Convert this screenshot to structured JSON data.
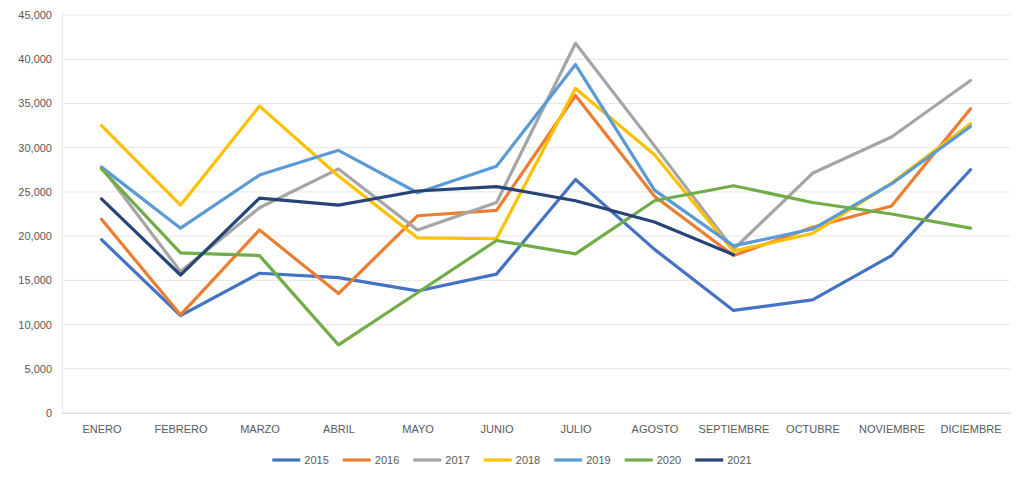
{
  "chart_data": {
    "type": "line",
    "categories": [
      "ENERO",
      "FEBRERO",
      "MARZO",
      "ABRIL",
      "MAYO",
      "JUNIO",
      "JULIO",
      "AGOSTO",
      "SEPTIEMBRE",
      "OCTUBRE",
      "NOVIEMBRE",
      "DICIEMBRE"
    ],
    "series": [
      {
        "name": "2015",
        "color": "#4472c4",
        "values": [
          19600,
          11000,
          15800,
          15300,
          13800,
          15700,
          26400,
          18500,
          11600,
          12800,
          17800,
          27500
        ]
      },
      {
        "name": "2016",
        "color": "#ed7d31",
        "values": [
          21900,
          11100,
          20700,
          13500,
          22300,
          22900,
          35900,
          24500,
          17800,
          21000,
          23400,
          34400
        ]
      },
      {
        "name": "2017",
        "color": "#a5a5a5",
        "values": [
          27800,
          16000,
          23200,
          27600,
          20700,
          23800,
          41800,
          30200,
          18500,
          27100,
          31200,
          37600
        ]
      },
      {
        "name": "2018",
        "color": "#ffc000",
        "values": [
          32500,
          23500,
          34700,
          26800,
          19800,
          19700,
          36700,
          29200,
          18300,
          20300,
          26000,
          32700
        ]
      },
      {
        "name": "2019",
        "color": "#5b9bd5",
        "values": [
          27800,
          20900,
          26900,
          29700,
          24900,
          27900,
          39400,
          25200,
          18900,
          20800,
          25900,
          32400
        ]
      },
      {
        "name": "2020",
        "color": "#70ad47",
        "values": [
          27600,
          18100,
          17800,
          7700,
          13600,
          19500,
          18000,
          24000,
          25700,
          23800,
          22500,
          20900
        ]
      },
      {
        "name": "2021",
        "color": "#264478",
        "values": [
          24200,
          15600,
          24300,
          23500,
          25100,
          25600,
          24000,
          21600,
          17900,
          null,
          null,
          null
        ]
      }
    ],
    "ylim": [
      0,
      45000
    ],
    "yticks": [
      0,
      {
        "value": 5000,
        "label": "5,000"
      },
      {
        "value": 10000,
        "label": "10,000"
      },
      {
        "value": 15000,
        "label": "15,000"
      },
      {
        "value": 20000,
        "label": "20,000"
      },
      {
        "value": 25000,
        "label": "25,000"
      },
      {
        "value": 30000,
        "label": "30,000"
      },
      {
        "value": 35000,
        "label": "35,000"
      },
      {
        "value": 40000,
        "label": "40,000"
      },
      {
        "value": 45000,
        "label": "45,000"
      }
    ],
    "grid": true,
    "legend": "bottom"
  }
}
